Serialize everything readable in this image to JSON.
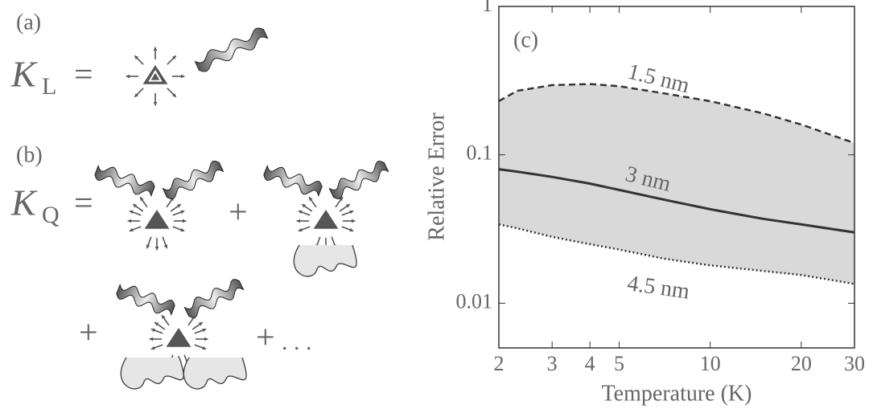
{
  "panels": [
    {
      "label": "(a)",
      "symbol": "K",
      "subscript": "L",
      "equals": "="
    },
    {
      "label": "(b)",
      "symbol": "K",
      "subscript": "Q",
      "equals": "=",
      "plus": [
        "+",
        "+",
        "+"
      ],
      "ellipsis": ". . ."
    }
  ],
  "chart_data": {
    "type": "line",
    "panel_label": "(c)",
    "x_label": "Temperature (K)",
    "y_label": "Relative Error",
    "xscale": "log",
    "yscale": "log",
    "xlim": [
      2,
      30
    ],
    "ylim": [
      0.005,
      1
    ],
    "xticks": [
      2,
      3,
      4,
      5,
      10,
      20,
      30
    ],
    "yticks": [
      0.01,
      0.1,
      1
    ],
    "band_color": "#d9d9d9",
    "x": [
      2,
      2.3,
      3,
      4,
      5,
      7,
      10,
      15,
      20,
      30
    ],
    "series": [
      {
        "name": "1.5 nm",
        "color": "#333333",
        "dash": "dashed",
        "values": [
          0.23,
          0.27,
          0.295,
          0.3,
          0.29,
          0.26,
          0.23,
          0.19,
          0.16,
          0.12
        ]
      },
      {
        "name": "3 nm",
        "color": "#333333",
        "dash": "solid",
        "values": [
          0.08,
          0.077,
          0.071,
          0.064,
          0.058,
          0.05,
          0.043,
          0.037,
          0.034,
          0.03
        ]
      },
      {
        "name": "4.5 nm",
        "color": "#333333",
        "dash": "dotted",
        "values": [
          0.034,
          0.032,
          0.028,
          0.025,
          0.023,
          0.02,
          0.018,
          0.0165,
          0.0155,
          0.0135
        ]
      }
    ]
  }
}
